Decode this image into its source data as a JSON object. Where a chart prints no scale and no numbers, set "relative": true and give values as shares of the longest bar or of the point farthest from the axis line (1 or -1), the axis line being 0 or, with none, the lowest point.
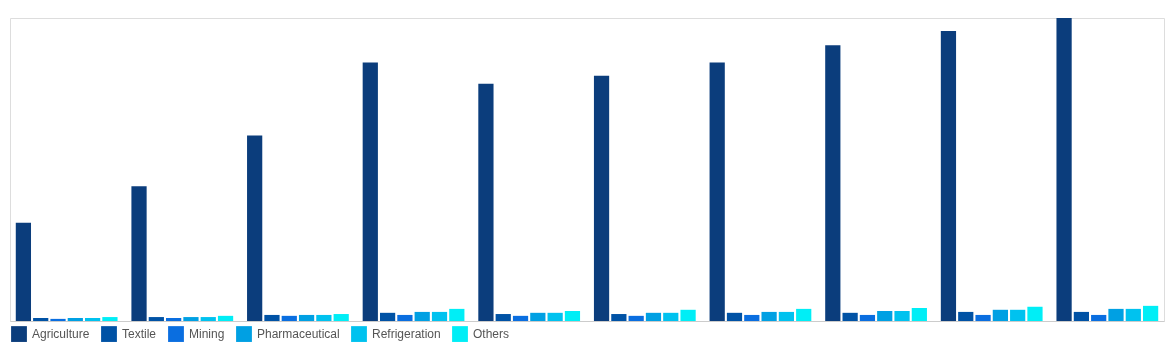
{
  "chart_data": {
    "type": "bar",
    "relative": true,
    "categories": [
      null,
      null,
      null,
      null,
      null,
      null,
      null,
      null,
      null,
      null
    ],
    "series": [
      {
        "name": "Agriculture",
        "color": "#0b3d7c",
        "values": [
          0.324,
          0.445,
          0.612,
          0.853,
          0.783,
          0.809,
          0.853,
          0.91,
          0.957,
          1
        ]
      },
      {
        "name": "Textile",
        "color": "#0052a5",
        "values": [
          0.01,
          0.013,
          0.02,
          0.027,
          0.023,
          0.023,
          0.027,
          0.027,
          0.03,
          0.03
        ]
      },
      {
        "name": "Mining",
        "color": "#0a6ee0",
        "values": [
          0.007,
          0.01,
          0.017,
          0.02,
          0.017,
          0.017,
          0.02,
          0.02,
          0.02,
          0.02
        ]
      },
      {
        "name": "Pharmaceutical",
        "color": "#00a0e3",
        "values": [
          0.01,
          0.013,
          0.02,
          0.03,
          0.027,
          0.027,
          0.03,
          0.033,
          0.037,
          0.04
        ]
      },
      {
        "name": "Refrigeration",
        "color": "#00c2ef",
        "values": [
          0.01,
          0.013,
          0.02,
          0.03,
          0.027,
          0.027,
          0.03,
          0.033,
          0.037,
          0.04
        ]
      },
      {
        "name": "Others",
        "color": "#00eef6",
        "values": [
          0.013,
          0.017,
          0.023,
          0.04,
          0.033,
          0.037,
          0.04,
          0.043,
          0.047,
          0.05
        ]
      }
    ],
    "legend": "bottom",
    "grid": false,
    "tick_labels": false
  }
}
